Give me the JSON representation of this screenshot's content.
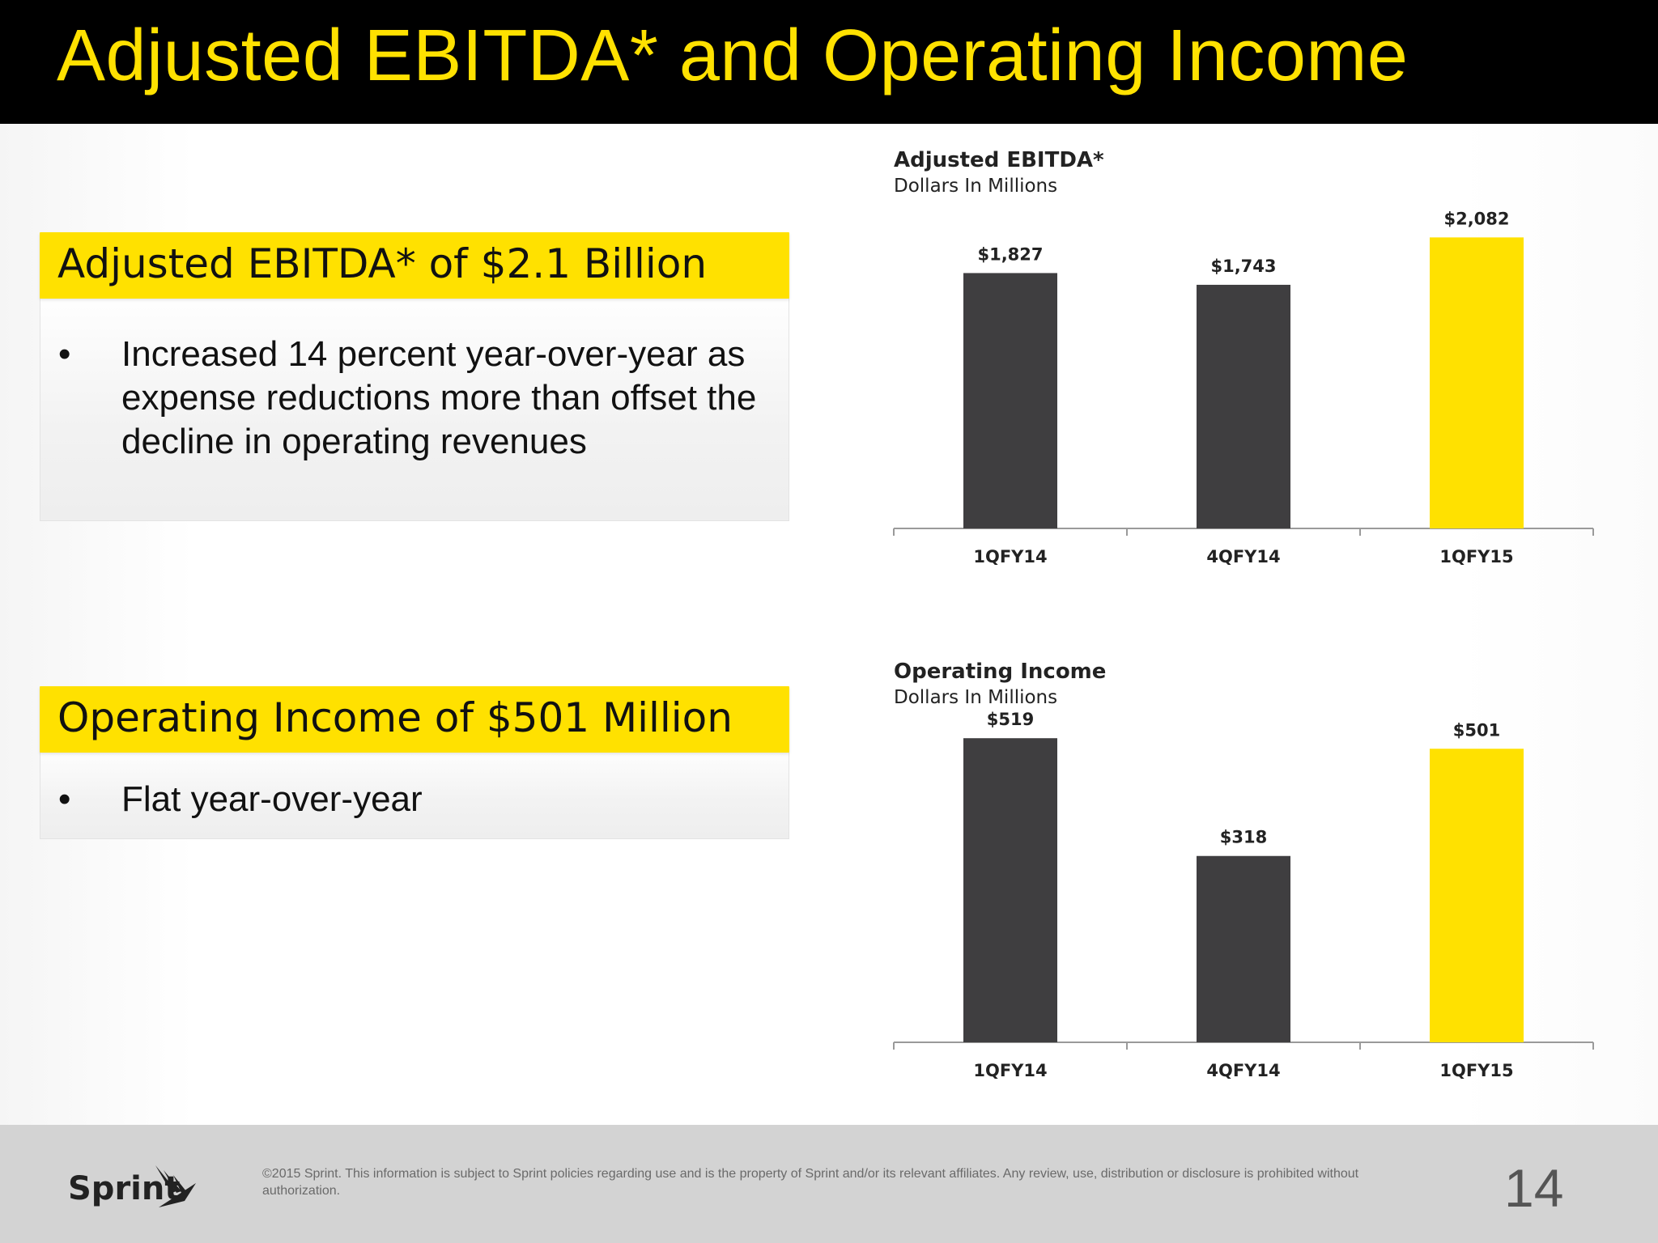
{
  "slide": {
    "title": "Adjusted EBITDA* and Operating Income",
    "page_number": "14"
  },
  "sections": [
    {
      "header": "Adjusted EBITDA* of $2.1 Billion",
      "bullets": [
        "Increased 14 percent year-over-year as expense reductions more than offset the decline in operating revenues"
      ]
    },
    {
      "header": "Operating Income of $501 Million",
      "bullets": [
        "Flat year-over-year"
      ]
    }
  ],
  "chart_data": [
    {
      "type": "bar",
      "title": "Adjusted  EBITDA*",
      "subtitle": "Dollars In Millions",
      "categories": [
        "1QFY14",
        "4QFY14",
        "1QFY15"
      ],
      "values": [
        1827,
        1743,
        2082
      ],
      "labels": [
        "$1,827",
        "$1,743",
        "$2,082"
      ],
      "colors": [
        "#3f3e40",
        "#3f3e40",
        "#FFE100"
      ],
      "ylim": [
        0,
        2200
      ]
    },
    {
      "type": "bar",
      "title": "Operating Income",
      "subtitle": "Dollars In Millions",
      "categories": [
        "1QFY14",
        "4QFY14",
        "1QFY15"
      ],
      "values": [
        519,
        318,
        501
      ],
      "labels": [
        "$519",
        "$318",
        "$501"
      ],
      "colors": [
        "#3f3e40",
        "#3f3e40",
        "#FFE100"
      ],
      "ylim": [
        0,
        540
      ]
    }
  ],
  "footer": {
    "logo_text": "Sprint",
    "legal": "©2015 Sprint. This information is subject to Sprint policies regarding use and is the property of Sprint and/or its relevant affiliates. Any review, use, distribution or disclosure is prohibited without authorization."
  }
}
